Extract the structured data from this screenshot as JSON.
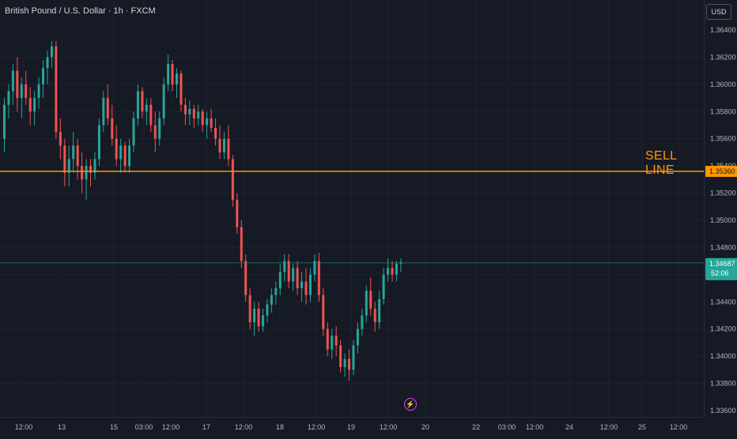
{
  "header": {
    "symbol": "British Pound / U.S. Dollar · 1h · FXCM"
  },
  "axis": {
    "currency": "USD",
    "price_ticks": [
      "1.36400",
      "1.36200",
      "1.36000",
      "1.35800",
      "1.35600",
      "1.35400",
      "1.35200",
      "1.35000",
      "1.34800",
      "1.34600",
      "1.34400",
      "1.34200",
      "1.34000",
      "1.33800",
      "1.33600"
    ],
    "time_ticks": [
      "12:00",
      "13",
      "15",
      "03:00",
      "12:00",
      "17",
      "12:00",
      "18",
      "12:00",
      "19",
      "12:00",
      "20",
      "22",
      "03:00",
      "12:00",
      "24",
      "12:00",
      "25",
      "12:00"
    ]
  },
  "sell_line": {
    "label": "SELL LINE",
    "price_label": "1.35360",
    "price": 1.3536
  },
  "current": {
    "price_label": "1.34687",
    "countdown": "52:06",
    "price": 1.34687
  },
  "colors": {
    "up": "#26a69a",
    "down": "#ef5350",
    "sell_line": "#ff9800",
    "current_line": "#26a69a",
    "background": "#161a25",
    "grid": "#1f2330"
  },
  "icons": {
    "event": "lightning-icon"
  },
  "chart_data": {
    "type": "candlestick",
    "ylim": [
      1.336,
      1.365
    ],
    "series": [
      {
        "ohlc": [
          [
            1.356,
            1.359,
            1.355,
            1.3585
          ],
          [
            1.3585,
            1.36,
            1.3575,
            1.3595
          ],
          [
            1.3595,
            1.3615,
            1.3585,
            1.361
          ],
          [
            1.361,
            1.362,
            1.358,
            1.359
          ],
          [
            1.359,
            1.3605,
            1.3575,
            1.36
          ],
          [
            1.36,
            1.361,
            1.3585,
            1.359
          ],
          [
            1.359,
            1.3598,
            1.357,
            1.358
          ],
          [
            1.358,
            1.3595,
            1.357,
            1.359
          ],
          [
            1.359,
            1.3605,
            1.3582,
            1.36
          ],
          [
            1.36,
            1.3618,
            1.359,
            1.3612
          ],
          [
            1.3612,
            1.3625,
            1.36,
            1.362
          ],
          [
            1.362,
            1.3632,
            1.3612,
            1.3628
          ],
          [
            1.3628,
            1.3632,
            1.356,
            1.3565
          ],
          [
            1.3565,
            1.3575,
            1.3545,
            1.3555
          ],
          [
            1.3555,
            1.356,
            1.3525,
            1.3535
          ],
          [
            1.3535,
            1.3555,
            1.3525,
            1.3545
          ],
          [
            1.3545,
            1.3565,
            1.3535,
            1.3555
          ],
          [
            1.3555,
            1.356,
            1.353,
            1.354
          ],
          [
            1.354,
            1.355,
            1.352,
            1.353
          ],
          [
            1.353,
            1.3545,
            1.3515,
            1.354
          ],
          [
            1.354,
            1.3545,
            1.3525,
            1.3535
          ],
          [
            1.3535,
            1.355,
            1.353,
            1.3545
          ],
          [
            1.3545,
            1.3575,
            1.354,
            1.357
          ],
          [
            1.357,
            1.3595,
            1.3565,
            1.359
          ],
          [
            1.359,
            1.36,
            1.357,
            1.3575
          ],
          [
            1.3575,
            1.3585,
            1.3555,
            1.356
          ],
          [
            1.356,
            1.357,
            1.354,
            1.3545
          ],
          [
            1.3545,
            1.356,
            1.3535,
            1.3555
          ],
          [
            1.3555,
            1.3558,
            1.3535,
            1.354
          ],
          [
            1.354,
            1.356,
            1.3535,
            1.3555
          ],
          [
            1.3555,
            1.358,
            1.355,
            1.3575
          ],
          [
            1.3575,
            1.36,
            1.357,
            1.3595
          ],
          [
            1.3595,
            1.3598,
            1.3575,
            1.358
          ],
          [
            1.358,
            1.359,
            1.357,
            1.3585
          ],
          [
            1.3585,
            1.359,
            1.3565,
            1.357
          ],
          [
            1.357,
            1.358,
            1.355,
            1.356
          ],
          [
            1.356,
            1.358,
            1.3555,
            1.3575
          ],
          [
            1.3575,
            1.3605,
            1.357,
            1.36
          ],
          [
            1.36,
            1.3622,
            1.3595,
            1.3615
          ],
          [
            1.3615,
            1.3618,
            1.3595,
            1.36
          ],
          [
            1.36,
            1.3612,
            1.359,
            1.3608
          ],
          [
            1.3608,
            1.361,
            1.358,
            1.3585
          ],
          [
            1.3585,
            1.359,
            1.357,
            1.3578
          ],
          [
            1.3578,
            1.3588,
            1.357,
            1.3582
          ],
          [
            1.3582,
            1.3585,
            1.3568,
            1.3575
          ],
          [
            1.3575,
            1.3585,
            1.357,
            1.358
          ],
          [
            1.358,
            1.3582,
            1.3565,
            1.357
          ],
          [
            1.357,
            1.358,
            1.356,
            1.3575
          ],
          [
            1.3575,
            1.3582,
            1.3565,
            1.3568
          ],
          [
            1.3568,
            1.3575,
            1.3555,
            1.356
          ],
          [
            1.356,
            1.357,
            1.3545,
            1.355
          ],
          [
            1.355,
            1.3565,
            1.3545,
            1.356
          ],
          [
            1.356,
            1.357,
            1.354,
            1.3545
          ],
          [
            1.3545,
            1.3548,
            1.351,
            1.3515
          ],
          [
            1.3515,
            1.352,
            1.349,
            1.3495
          ],
          [
            1.3495,
            1.35,
            1.3465,
            1.347
          ],
          [
            1.347,
            1.3475,
            1.344,
            1.3445
          ],
          [
            1.3445,
            1.345,
            1.342,
            1.3425
          ],
          [
            1.3425,
            1.344,
            1.3415,
            1.3435
          ],
          [
            1.3435,
            1.344,
            1.3418,
            1.3422
          ],
          [
            1.3422,
            1.3435,
            1.3418,
            1.343
          ],
          [
            1.343,
            1.3442,
            1.3425,
            1.3438
          ],
          [
            1.3438,
            1.345,
            1.3432,
            1.3445
          ],
          [
            1.3445,
            1.3455,
            1.3438,
            1.345
          ],
          [
            1.345,
            1.3468,
            1.3445,
            1.3462
          ],
          [
            1.3462,
            1.3475,
            1.3455,
            1.347
          ],
          [
            1.347,
            1.3475,
            1.345,
            1.3455
          ],
          [
            1.3455,
            1.3468,
            1.3448,
            1.3465
          ],
          [
            1.3465,
            1.347,
            1.3445,
            1.345
          ],
          [
            1.345,
            1.3462,
            1.344,
            1.3455
          ],
          [
            1.3455,
            1.3465,
            1.3438,
            1.3445
          ],
          [
            1.3445,
            1.3465,
            1.344,
            1.346
          ],
          [
            1.346,
            1.3475,
            1.3455,
            1.347
          ],
          [
            1.347,
            1.3476,
            1.344,
            1.3445
          ],
          [
            1.3445,
            1.345,
            1.3415,
            1.342
          ],
          [
            1.342,
            1.3425,
            1.34,
            1.3405
          ],
          [
            1.3405,
            1.342,
            1.3398,
            1.3415
          ],
          [
            1.3415,
            1.3422,
            1.34,
            1.3408
          ],
          [
            1.3408,
            1.3412,
            1.3388,
            1.3392
          ],
          [
            1.3392,
            1.3402,
            1.3385,
            1.3398
          ],
          [
            1.3398,
            1.3405,
            1.3382,
            1.339
          ],
          [
            1.339,
            1.3412,
            1.3386,
            1.3408
          ],
          [
            1.3408,
            1.3425,
            1.3402,
            1.342
          ],
          [
            1.342,
            1.3435,
            1.3415,
            1.343
          ],
          [
            1.343,
            1.3452,
            1.3425,
            1.3448
          ],
          [
            1.3448,
            1.3458,
            1.343,
            1.3435
          ],
          [
            1.3435,
            1.344,
            1.3418,
            1.3425
          ],
          [
            1.3425,
            1.3448,
            1.342,
            1.3442
          ],
          [
            1.3442,
            1.3465,
            1.3438,
            1.346
          ],
          [
            1.346,
            1.3472,
            1.3455,
            1.3465
          ],
          [
            1.3465,
            1.347,
            1.3455,
            1.346
          ],
          [
            1.346,
            1.347,
            1.3455,
            1.3468
          ],
          [
            1.3468,
            1.3472,
            1.3462,
            1.3469
          ]
        ]
      }
    ]
  }
}
